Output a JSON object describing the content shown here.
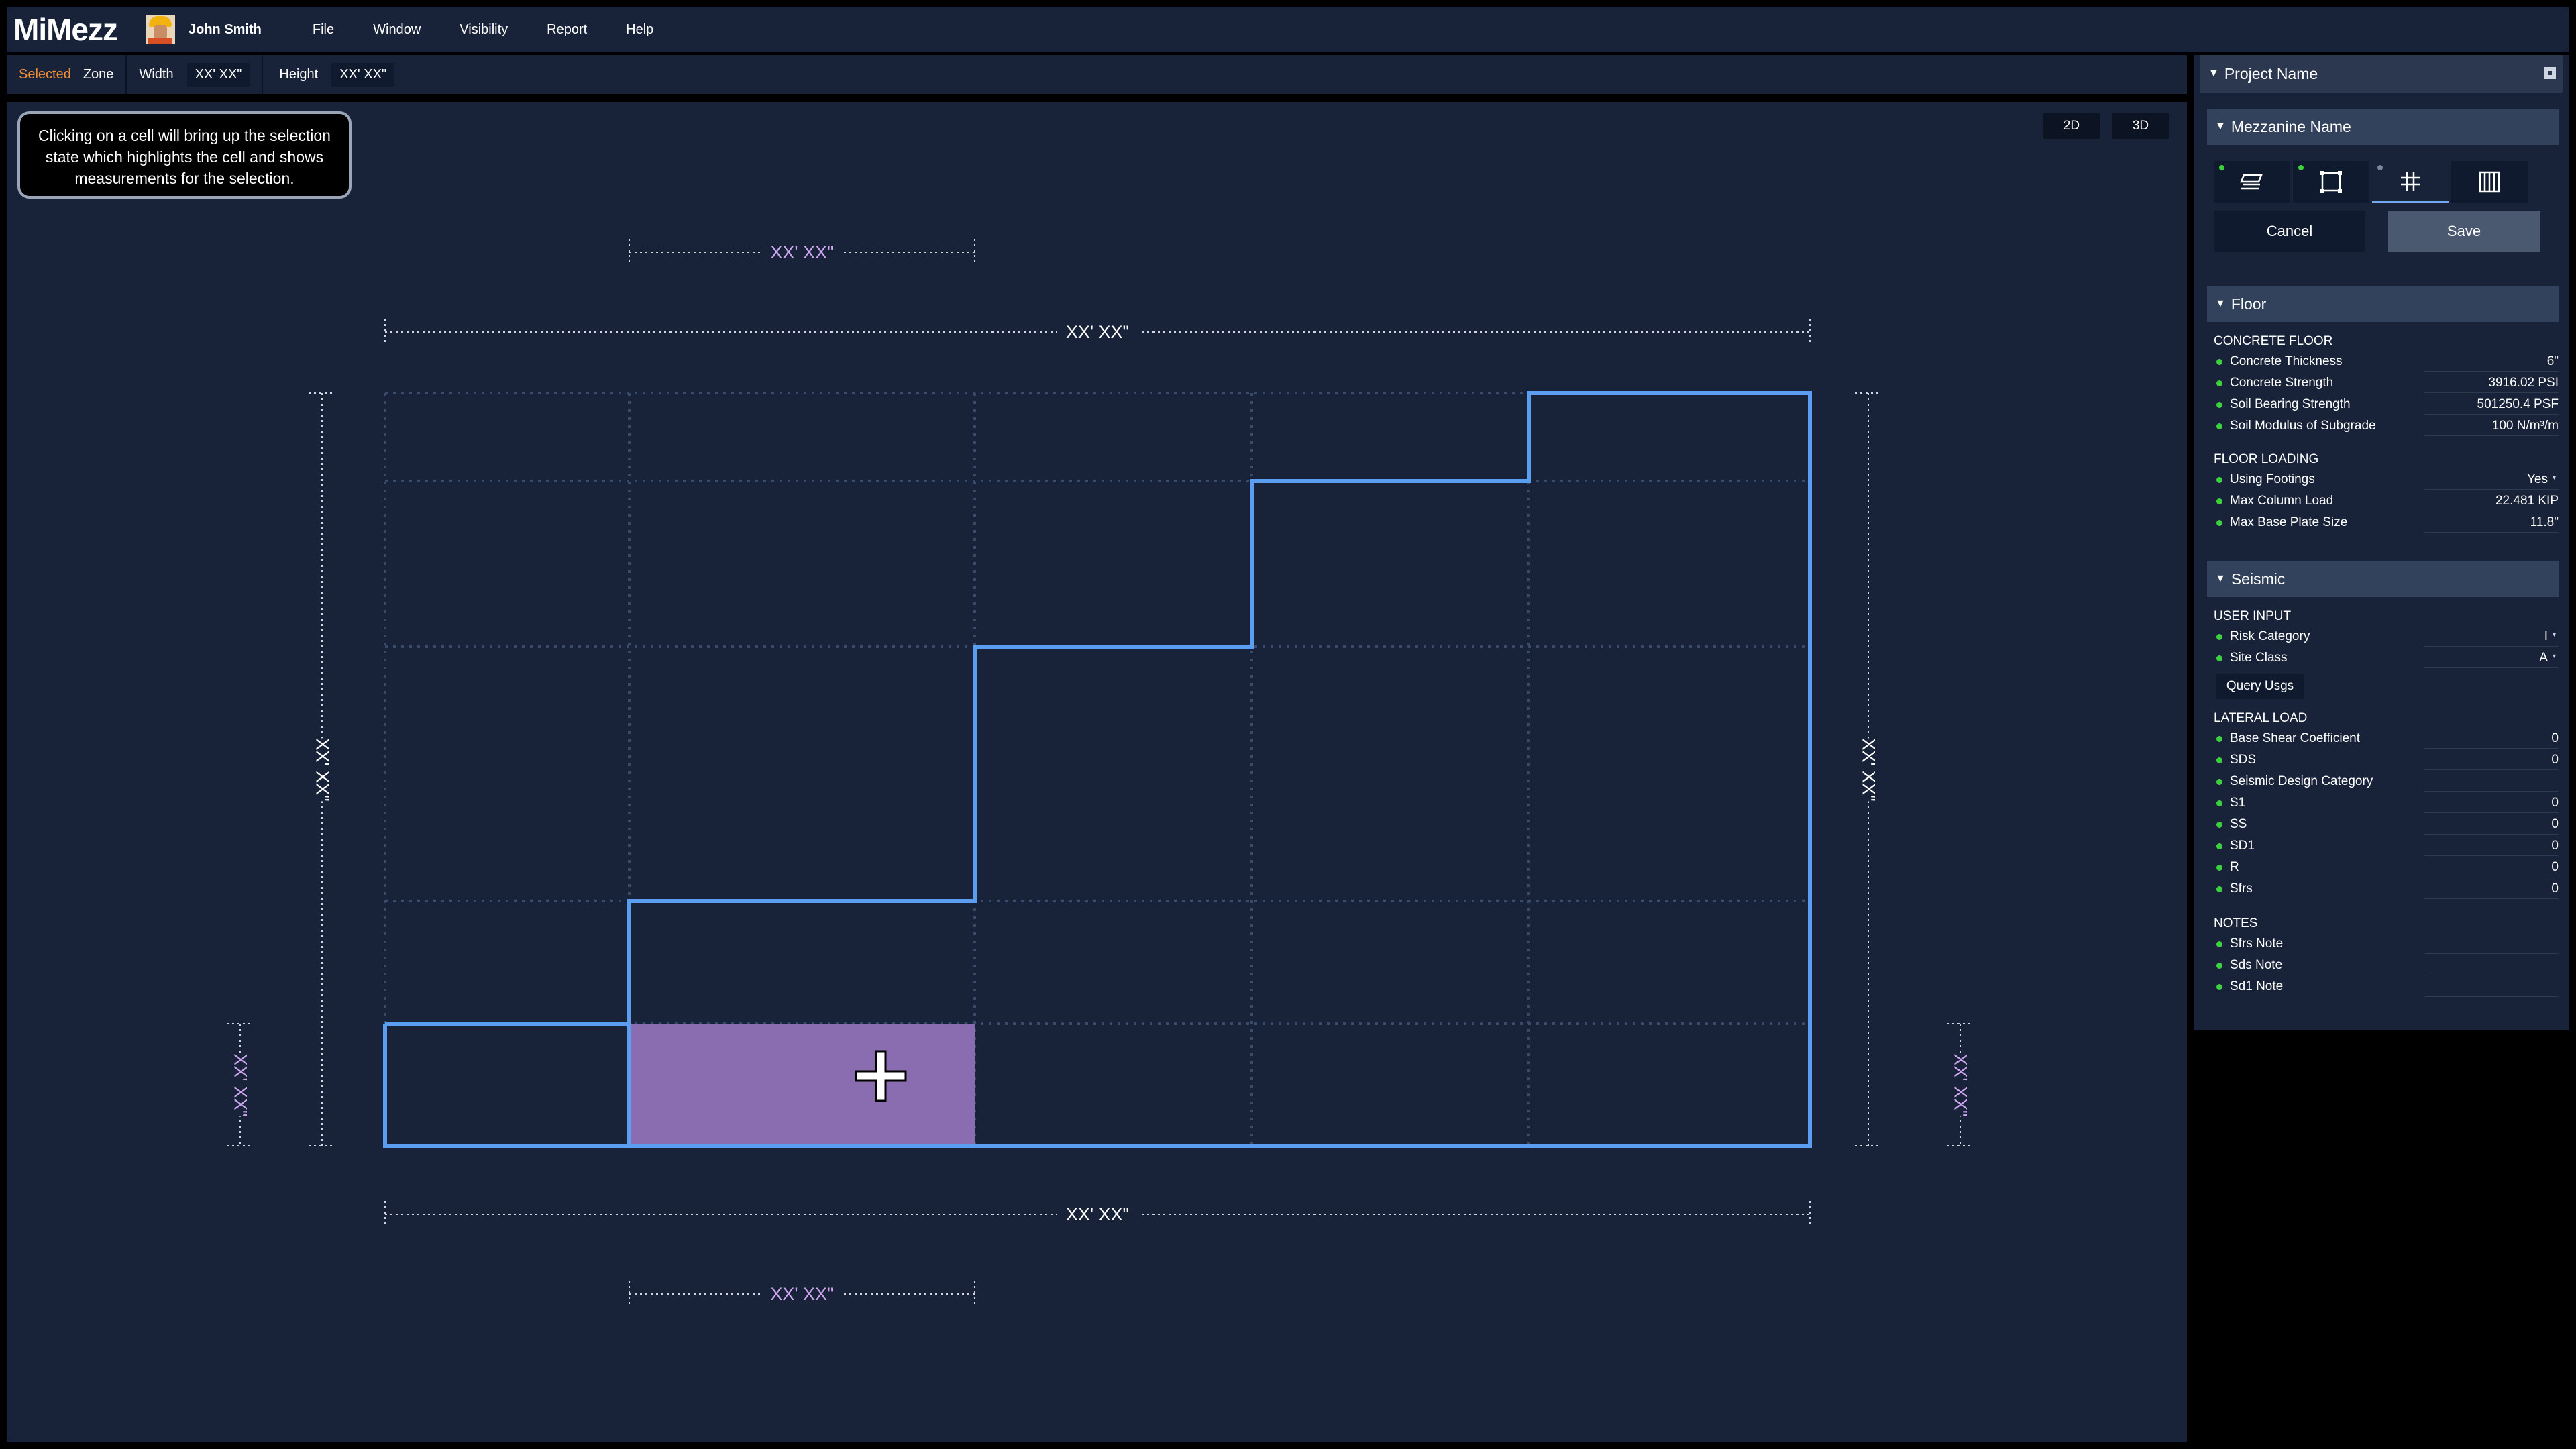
{
  "app": {
    "title": "MiMezz"
  },
  "user": {
    "name": "John Smith"
  },
  "menu": [
    "File",
    "Window",
    "Visibility",
    "Report",
    "Help"
  ],
  "toolbar": {
    "selected_label": "Selected",
    "selected_value": "Zone",
    "width_label": "Width",
    "width_value": "XX' XX\"",
    "height_label": "Height",
    "height_value": "XX' XX\""
  },
  "canvas": {
    "tooltip": "Clicking on a cell will bring up the selection state which highlights the cell and shows measurements for the selection.",
    "view_2d": "2D",
    "view_3d": "3D",
    "dims": {
      "top_selection": "XX' XX\"",
      "top_total": "XX' XX\"",
      "bottom_total": "XX' XX\"",
      "bottom_selection": "XX' XX\"",
      "left_total": "XX' XX\"",
      "right_total": "XX' XX\"",
      "left_selection": "XX' XX\"",
      "right_selection": "XX' XX\""
    },
    "colors": {
      "outline": "#5b9df0",
      "grid": "#3a4a6a",
      "selection": "#8a6db0",
      "dimension": "#cfa6f0"
    }
  },
  "panel": {
    "project_name": "Project Name",
    "mezzanine_name": "Mezzanine Name",
    "tools": [
      {
        "icon": "floor-layers-icon",
        "status": "complete"
      },
      {
        "icon": "outline-square-icon",
        "status": "complete"
      },
      {
        "icon": "grid-icon",
        "status": "pending"
      },
      {
        "icon": "railing-icon",
        "status": "none"
      }
    ],
    "cancel": "Cancel",
    "save": "Save",
    "floor": {
      "title": "Floor",
      "concrete_label": "CONCRETE FLOOR",
      "concrete": [
        {
          "name": "Concrete Thickness",
          "value": "6\""
        },
        {
          "name": "Concrete Strength",
          "value": "3916.02 PSI"
        },
        {
          "name": "Soil Bearing Strength",
          "value": "501250.4 PSF"
        },
        {
          "name": "Soil Modulus of Subgrade",
          "value": "100 N/m³/m"
        }
      ],
      "loading_label": "FLOOR LOADING",
      "loading": [
        {
          "name": "Using Footings",
          "value": "Yes"
        },
        {
          "name": "Max Column Load",
          "value": "22.481 KIP"
        },
        {
          "name": "Max Base Plate Size",
          "value": "11.8\""
        }
      ]
    },
    "seismic": {
      "title": "Seismic",
      "user_input_label": "USER INPUT",
      "user_input": [
        {
          "name": "Risk Category",
          "value": "I"
        },
        {
          "name": "Site Class",
          "value": "A"
        }
      ],
      "query_button": "Query Usgs",
      "lateral_label": "LATERAL LOAD",
      "lateral": [
        {
          "name": "Base Shear Coefficient",
          "value": "0"
        },
        {
          "name": "SDS",
          "value": "0"
        },
        {
          "name": "Seismic Design Category",
          "value": ""
        },
        {
          "name": "S1",
          "value": "0"
        },
        {
          "name": "SS",
          "value": "0"
        },
        {
          "name": "SD1",
          "value": "0"
        },
        {
          "name": "R",
          "value": "0"
        },
        {
          "name": "Sfrs",
          "value": "0"
        }
      ],
      "notes_label": "NOTES",
      "notes": [
        {
          "name": "Sfrs Note",
          "value": ""
        },
        {
          "name": "Sds Note",
          "value": ""
        },
        {
          "name": "Sd1 Note",
          "value": ""
        }
      ]
    }
  }
}
